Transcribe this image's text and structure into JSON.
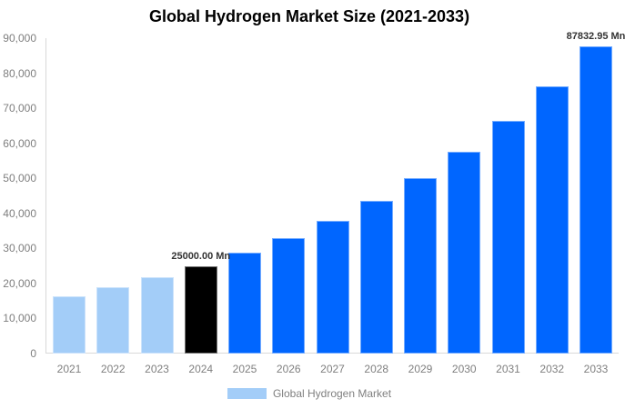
{
  "title": "Global Hydrogen Market Size (2021-2033)",
  "legend": {
    "label": "Global Hydrogen Market"
  },
  "colors": {
    "historical_bar": "#a3cdf8",
    "highlight_bar": "#000000",
    "forecast_bar": "#0066ff",
    "axis_line": "#d9d9d9",
    "tick_text": "#7f7f7f",
    "annotation_text": "#333333",
    "legend_text": "#7f7f7f",
    "title_text": "#000000",
    "background": "#ffffff"
  },
  "y_axis_ticks": [
    "0",
    "10,000",
    "20,000",
    "30,000",
    "40,000",
    "50,000",
    "60,000",
    "70,000",
    "80,000",
    "90,000"
  ],
  "chart_data": {
    "type": "bar",
    "title": "Global Hydrogen Market Size (2021-2033)",
    "xlabel": "",
    "ylabel": "",
    "ylim": [
      0,
      90000
    ],
    "grid": false,
    "legend_position": "bottom",
    "unit": "Mn",
    "categories": [
      "2021",
      "2022",
      "2023",
      "2024",
      "2025",
      "2026",
      "2027",
      "2028",
      "2029",
      "2030",
      "2031",
      "2032",
      "2033"
    ],
    "series": [
      {
        "name": "Global Hydrogen Market",
        "values": [
          16445,
          18909,
          21742,
          25000,
          28746,
          33053,
          38005,
          43700,
          50248,
          57778,
          66435,
          76390,
          87832.95
        ]
      }
    ],
    "bar_styles": [
      "historical",
      "historical",
      "historical",
      "highlight",
      "forecast",
      "forecast",
      "forecast",
      "forecast",
      "forecast",
      "forecast",
      "forecast",
      "forecast",
      "forecast"
    ],
    "annotations": [
      {
        "category": "2024",
        "label": "25000.00 Mn"
      },
      {
        "category": "2033",
        "label": "87832.95 Mn"
      }
    ]
  }
}
